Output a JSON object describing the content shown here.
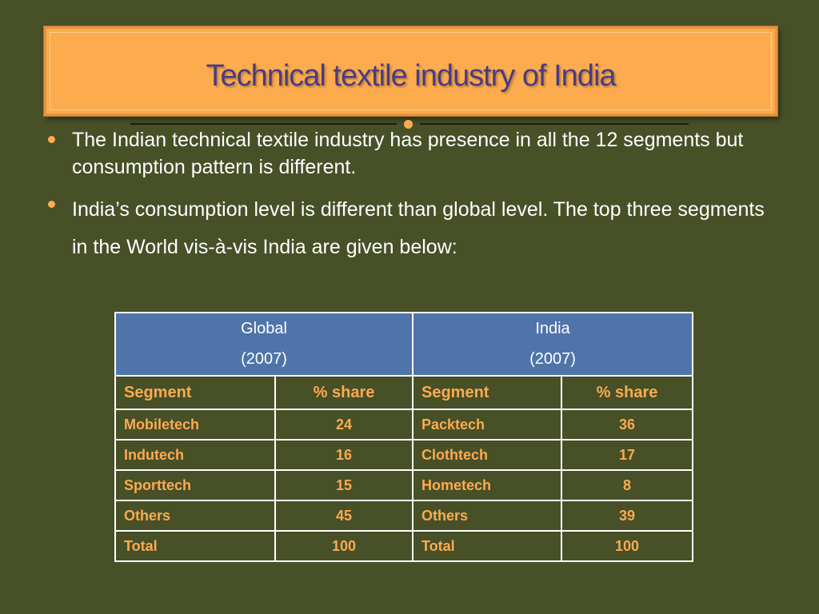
{
  "title": "Technical textile industry of India",
  "bullets": [
    "The Indian technical textile industry has presence in all the 12 segments but consumption pattern is different.",
    "India’s consumption level is different than global level. The top three segments in the World vis-à-vis India are given below:"
  ],
  "table": {
    "groups": [
      {
        "name": "Global",
        "year": "(2007)"
      },
      {
        "name": "India",
        "year": "(2007)"
      }
    ],
    "columns": [
      "Segment",
      "% share",
      "Segment",
      "% share"
    ],
    "rows": [
      [
        "Mobiletech",
        "24",
        "Packtech",
        "36"
      ],
      [
        "Indutech",
        "16",
        "Clothtech",
        "17"
      ],
      [
        "Sporttech",
        "15",
        "Hometech",
        "8"
      ],
      [
        "Others",
        "45",
        "Others",
        "39"
      ],
      [
        "Total",
        "100",
        "Total",
        "100"
      ]
    ]
  },
  "colors": {
    "background": "#475027",
    "title_box": "#fcab4f",
    "title_text": "#4a3c82",
    "table_header": "#4f74aa",
    "table_text": "#fcab4f"
  }
}
